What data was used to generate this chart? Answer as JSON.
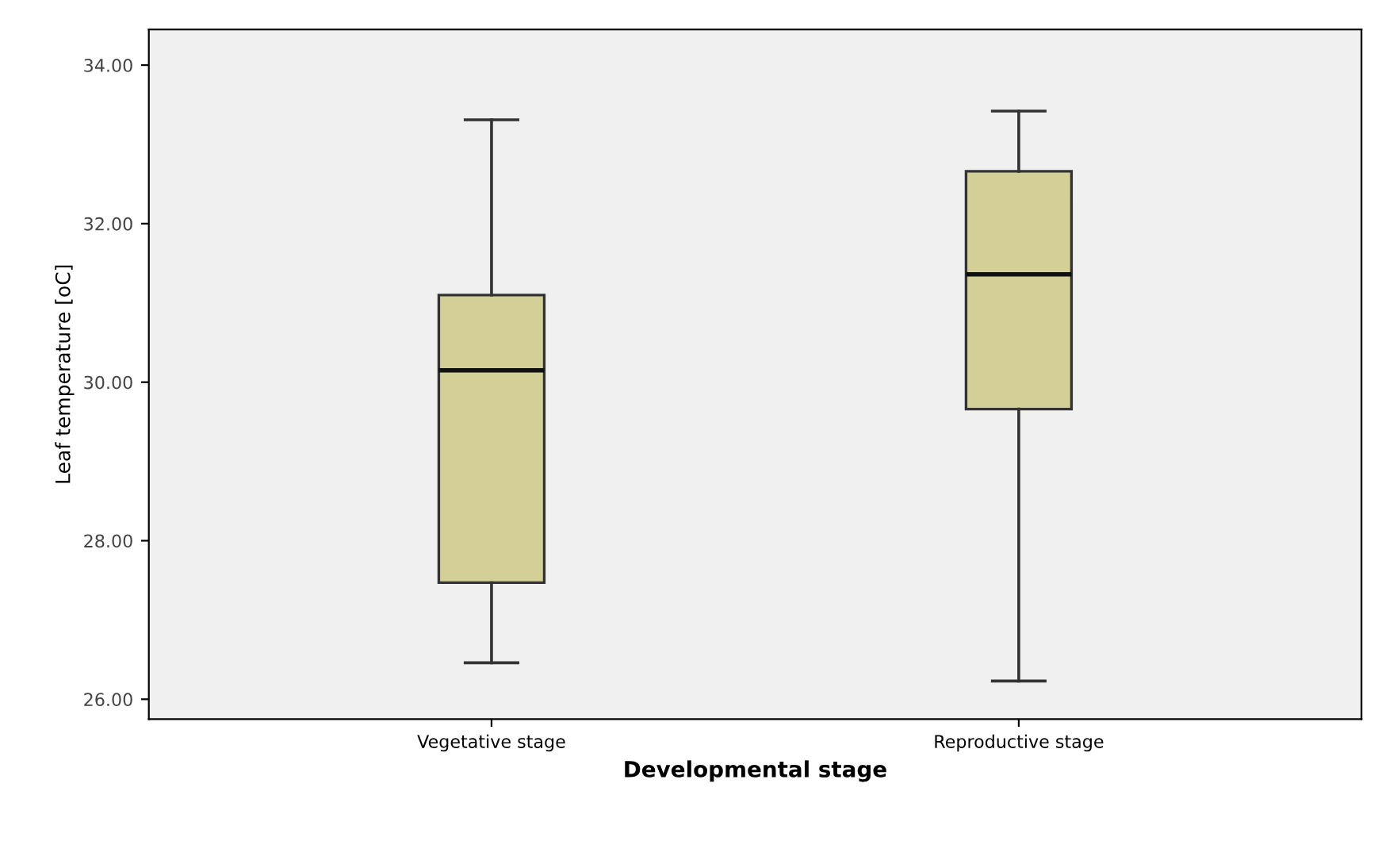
{
  "chart_data": {
    "type": "box",
    "xlabel": "Developmental stage",
    "ylabel": "Leaf temperature [oC]",
    "categories": [
      "Vegetative stage",
      "Reproductive stage"
    ],
    "boxes": [
      {
        "low": 26.46,
        "q1": 27.47,
        "median": 30.15,
        "q3": 31.1,
        "high": 33.31
      },
      {
        "low": 26.23,
        "q1": 29.66,
        "median": 31.36,
        "q3": 32.66,
        "high": 33.42
      }
    ],
    "color": "#d3cf97",
    "ylim": [
      25.75,
      34.45
    ],
    "yticks": [
      {
        "value": 26,
        "label": "26.00"
      },
      {
        "value": 28,
        "label": "28.00"
      },
      {
        "value": 30,
        "label": "30.00"
      },
      {
        "value": 32,
        "label": "32.00"
      },
      {
        "value": 34,
        "label": "34.00"
      }
    ],
    "grid": false
  }
}
